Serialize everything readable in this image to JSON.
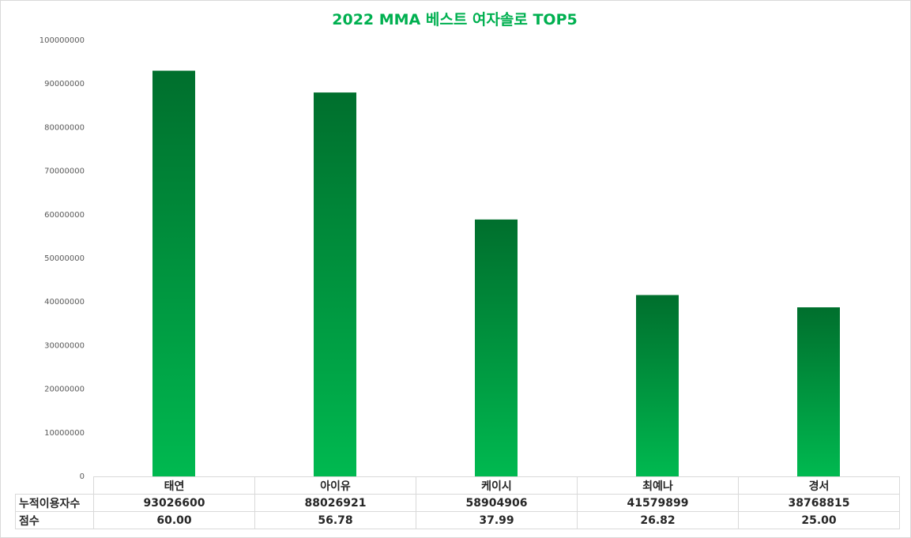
{
  "chart_data": {
    "type": "bar",
    "title": "2022 MMA 베스트 여자솔로  TOP5",
    "categories": [
      "태연",
      "아이유",
      "케이시",
      "최예나",
      "경서"
    ],
    "series": [
      {
        "name": "누적이용자수",
        "values": [
          93026600,
          88026921,
          58904906,
          41579899,
          38768815
        ]
      }
    ],
    "table_rows": [
      {
        "label": "누적이용자수",
        "values": [
          "93026600",
          "88026921",
          "58904906",
          "41579899",
          "38768815"
        ]
      },
      {
        "label": "점수",
        "values": [
          "60.00",
          "56.78",
          "37.99",
          "26.82",
          "25.00"
        ]
      }
    ],
    "y_ticks": [
      "0",
      "10000000",
      "20000000",
      "30000000",
      "40000000",
      "50000000",
      "60000000",
      "70000000",
      "80000000",
      "90000000",
      "100000000"
    ],
    "ylim": [
      0,
      100000000
    ],
    "xlabel": "",
    "ylabel": "",
    "grid": false,
    "legend": "data-table",
    "colors": {
      "bar_top": "#006f2d",
      "bar_bottom": "#00b950",
      "title": "#00b050"
    }
  }
}
